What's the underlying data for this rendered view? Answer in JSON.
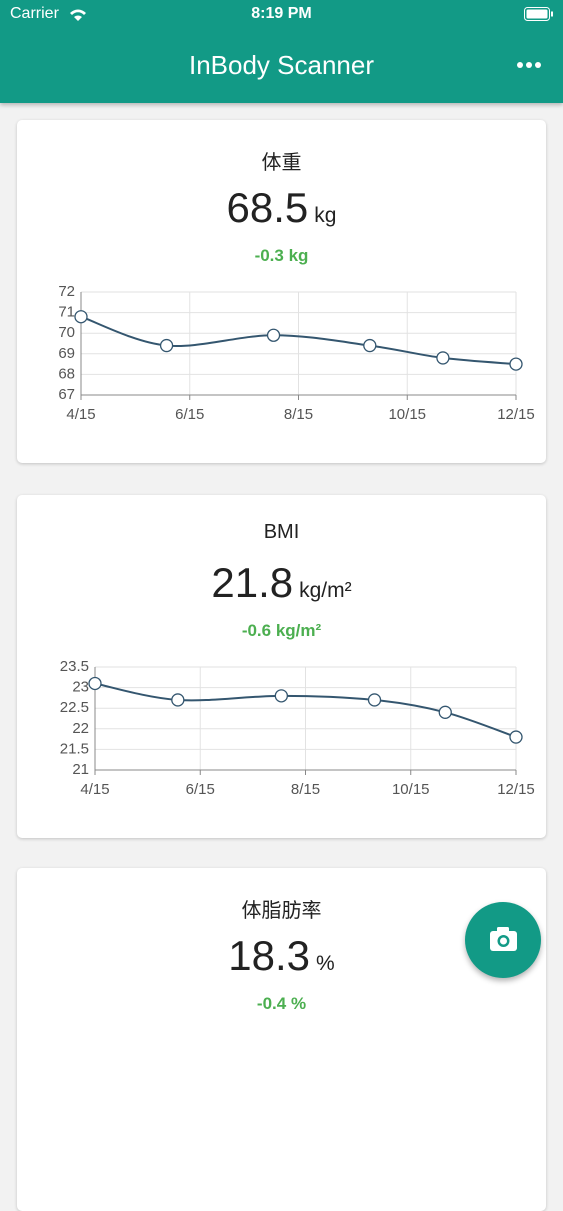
{
  "status_bar": {
    "carrier": "Carrier",
    "time": "8:19 PM"
  },
  "app_bar": {
    "title": "InBody Scanner"
  },
  "cards": [
    {
      "title": "体重",
      "value": 68.5,
      "unit": "kg",
      "change": "-0.3 kg",
      "chart": {
        "type": "line",
        "x": [
          "4/15",
          "6/2",
          "8/1",
          "9/24",
          "11/4",
          "12/15"
        ],
        "values": [
          70.8,
          69.4,
          69.9,
          69.4,
          68.8,
          68.5
        ],
        "color": "#34566f",
        "xlim": [
          "4/15",
          "12/15"
        ],
        "xticks": [
          "4/15",
          "6/15",
          "8/15",
          "10/15",
          "12/15"
        ],
        "ylim": [
          67,
          72
        ],
        "yticks": [
          67,
          68,
          69,
          70,
          71,
          72
        ],
        "grid": true
      }
    },
    {
      "title": "BMI",
      "value": 21.8,
      "unit": "kg/m²",
      "change": "-0.6 kg/m²",
      "chart": {
        "type": "line",
        "x": [
          "4/15",
          "6/2",
          "8/1",
          "9/24",
          "11/4",
          "12/15"
        ],
        "values": [
          23.1,
          22.7,
          22.8,
          22.7,
          22.4,
          21.8
        ],
        "color": "#34566f",
        "xlim": [
          "4/15",
          "12/15"
        ],
        "xticks": [
          "4/15",
          "6/15",
          "8/15",
          "10/15",
          "12/15"
        ],
        "ylim": [
          21,
          23.5
        ],
        "yticks": [
          21,
          21.5,
          22,
          22.5,
          23,
          23.5
        ],
        "grid": true
      }
    },
    {
      "title": "体脂肪率",
      "value": 18.3,
      "unit": "%",
      "change": "-0.4 %"
    }
  ]
}
